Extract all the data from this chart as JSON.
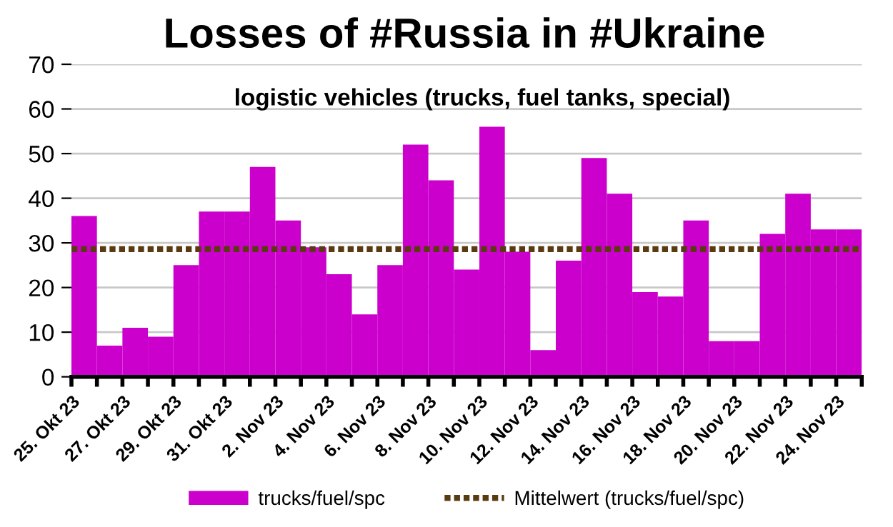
{
  "chart_data": {
    "type": "bar",
    "title": "Losses of #Russia in #Ukraine",
    "subtitle": "logistic vehicles (trucks, fuel tanks, special)",
    "categories": [
      "25. Okt 23",
      null,
      "27. Okt 23",
      null,
      "29. Okt 23",
      null,
      "31. Okt 23",
      null,
      "2. Nov 23",
      null,
      "4. Nov 23",
      null,
      "6. Nov 23",
      null,
      "8. Nov 23",
      null,
      "10. Nov 23",
      null,
      "12. Nov 23",
      null,
      "14. Nov 23",
      null,
      "16. Nov 23",
      null,
      "18. Nov 23",
      null,
      "20. Nov 23",
      null,
      "22. Nov 23",
      null,
      "24. Nov 23"
    ],
    "series": [
      {
        "name": "trucks/fuel/spc",
        "color": "#cc00cc",
        "values": [
          36,
          7,
          11,
          9,
          25,
          37,
          37,
          47,
          35,
          29,
          23,
          14,
          25,
          52,
          44,
          24,
          56,
          28,
          6,
          26,
          49,
          41,
          19,
          18,
          35,
          8,
          8,
          32,
          41,
          33,
          33
        ]
      }
    ],
    "ref_lines": [
      {
        "axis": "y",
        "value": 28.6,
        "label": "Mittelwert (trucks/fuel/spc)",
        "color": "#5a3a10",
        "line_style": "dotted"
      }
    ],
    "ylim": [
      0,
      70
    ],
    "yticks": [
      0,
      10,
      20,
      30,
      40,
      50,
      60,
      70
    ],
    "grid": "y",
    "legend": "bottom"
  }
}
